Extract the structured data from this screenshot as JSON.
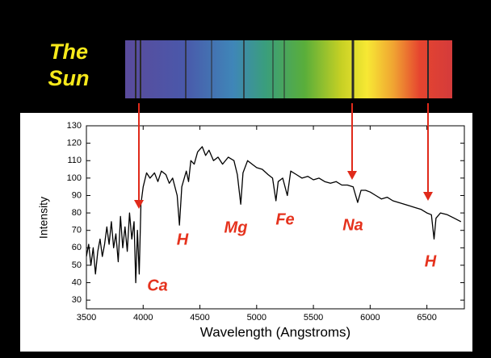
{
  "chart_data": {
    "type": "line",
    "title": "The Sun",
    "x_label": "Wavelength (Angstroms)",
    "y_label": "Intensity",
    "color": "#000000",
    "xlim": [
      3500,
      6830
    ],
    "ylim": [
      25,
      130
    ],
    "xticks": [
      3500,
      4000,
      4500,
      5000,
      5500,
      6000,
      6500
    ],
    "yticks": [
      30,
      40,
      50,
      60,
      70,
      80,
      90,
      100,
      110,
      120,
      130
    ],
    "x": [
      3500,
      3520,
      3540,
      3560,
      3580,
      3600,
      3620,
      3640,
      3660,
      3680,
      3700,
      3720,
      3740,
      3760,
      3780,
      3800,
      3820,
      3840,
      3860,
      3880,
      3900,
      3920,
      3935,
      3950,
      3965,
      3980,
      4000,
      4030,
      4060,
      4100,
      4130,
      4160,
      4200,
      4230,
      4260,
      4300,
      4320,
      4340,
      4380,
      4400,
      4420,
      4450,
      4480,
      4520,
      4550,
      4580,
      4620,
      4660,
      4700,
      4750,
      4800,
      4830,
      4860,
      4880,
      4920,
      4960,
      5000,
      5050,
      5100,
      5140,
      5170,
      5190,
      5230,
      5270,
      5300,
      5350,
      5400,
      5450,
      5500,
      5550,
      5600,
      5650,
      5700,
      5750,
      5800,
      5850,
      5890,
      5920,
      5960,
      6000,
      6050,
      6100,
      6150,
      6200,
      6250,
      6300,
      6350,
      6400,
      6450,
      6500,
      6540,
      6563,
      6580,
      6620,
      6680,
      6740,
      6800
    ],
    "values": [
      55,
      62,
      50,
      60,
      45,
      58,
      65,
      55,
      62,
      72,
      62,
      75,
      60,
      68,
      52,
      78,
      60,
      72,
      58,
      80,
      65,
      75,
      40,
      70,
      45,
      85,
      95,
      103,
      100,
      103,
      98,
      104,
      102,
      97,
      100,
      90,
      73,
      95,
      104,
      98,
      110,
      108,
      115,
      118,
      113,
      116,
      110,
      112,
      108,
      112,
      110,
      102,
      85,
      103,
      110,
      108,
      106,
      105,
      102,
      100,
      87,
      98,
      100,
      90,
      104,
      102,
      100,
      101,
      99,
      100,
      98,
      97,
      98,
      96,
      96,
      95,
      86,
      93,
      93,
      92,
      90,
      88,
      89,
      87,
      86,
      85,
      84,
      83,
      82,
      80,
      79,
      65,
      77,
      80,
      79,
      77,
      75
    ],
    "annotations": [
      "Ca",
      "H",
      "Mg",
      "Fe",
      "Na",
      "H"
    ]
  }
}
